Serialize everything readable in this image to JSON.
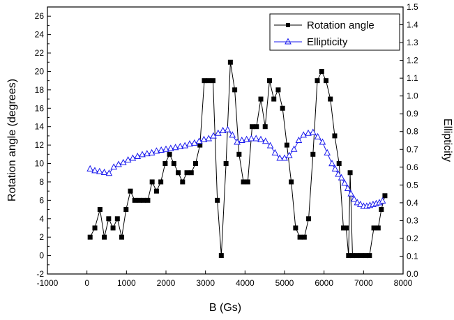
{
  "chart_data": {
    "type": "line",
    "xlabel": "B (Gs)",
    "ylabel_left": "Rotation angle (degrees)",
    "ylabel_right": "Ellipticity",
    "xlim": [
      -1000,
      8000
    ],
    "ylim_left": [
      -2,
      27
    ],
    "ylim_right": [
      0.0,
      1.5
    ],
    "x_ticks": [
      -1000,
      0,
      1000,
      2000,
      3000,
      4000,
      5000,
      6000,
      7000,
      8000
    ],
    "y_left_ticks": [
      -2,
      0,
      2,
      4,
      6,
      8,
      10,
      12,
      14,
      16,
      18,
      20,
      22,
      24,
      26
    ],
    "y_right_ticks": [
      0.0,
      0.1,
      0.2,
      0.3,
      0.4,
      0.5,
      0.6,
      0.7,
      0.8,
      0.9,
      1.0,
      1.1,
      1.2,
      1.3,
      1.4,
      1.5
    ],
    "grid": false,
    "legend_position": "top-right",
    "series": [
      {
        "name": "Rotation angle",
        "axis": "left",
        "marker": "square",
        "color": "#000000",
        "x": [
          80,
          200,
          330,
          440,
          550,
          660,
          770,
          880,
          990,
          1100,
          1210,
          1320,
          1430,
          1540,
          1650,
          1760,
          1870,
          1980,
          2090,
          2200,
          2310,
          2420,
          2530,
          2640,
          2750,
          2860,
          2970,
          3080,
          3190,
          3300,
          3400,
          3520,
          3630,
          3740,
          3850,
          3960,
          4070,
          4180,
          4290,
          4400,
          4510,
          4620,
          4730,
          4840,
          4950,
          5060,
          5170,
          5280,
          5390,
          5500,
          5610,
          5720,
          5830,
          5940,
          6050,
          6160,
          6270,
          6380,
          6490,
          6560,
          6620,
          6660,
          6720,
          6830,
          6940,
          7050,
          7150,
          7260,
          7370,
          7450,
          7540
        ],
        "y": [
          2,
          3,
          5,
          2,
          4,
          3,
          4,
          2,
          5,
          7,
          6,
          6,
          6,
          6,
          8,
          7,
          8,
          10,
          11,
          10,
          9,
          8,
          9,
          9,
          10,
          12,
          19,
          19,
          19,
          6,
          0,
          10,
          21,
          18,
          11,
          8,
          8,
          14,
          14,
          17,
          14,
          19,
          17,
          18,
          16,
          12,
          8,
          3,
          2,
          2,
          4,
          11,
          19,
          20,
          19,
          17,
          13,
          10,
          3,
          3,
          0,
          9,
          0,
          0,
          0,
          0,
          0,
          3,
          3,
          5,
          6.5
        ]
      },
      {
        "name": "Ellipticity",
        "axis": "right",
        "marker": "triangle-open",
        "color": "#1a1aee",
        "x": [
          80,
          200,
          320,
          440,
          560,
          680,
          800,
          920,
          1040,
          1160,
          1280,
          1400,
          1520,
          1640,
          1760,
          1880,
          2000,
          2120,
          2240,
          2360,
          2480,
          2600,
          2720,
          2840,
          2960,
          3080,
          3200,
          3320,
          3440,
          3560,
          3680,
          3800,
          3920,
          4040,
          4160,
          4280,
          4400,
          4520,
          4640,
          4760,
          4880,
          5000,
          5120,
          5240,
          5360,
          5480,
          5600,
          5720,
          5840,
          5960,
          6080,
          6200,
          6280,
          6360,
          6440,
          6520,
          6600,
          6680,
          6760,
          6840,
          6920,
          7000,
          7080,
          7160,
          7240,
          7320,
          7400,
          7480
        ],
        "y": [
          0.59,
          0.58,
          0.575,
          0.57,
          0.565,
          0.6,
          0.615,
          0.625,
          0.64,
          0.65,
          0.66,
          0.67,
          0.675,
          0.68,
          0.69,
          0.695,
          0.7,
          0.705,
          0.71,
          0.715,
          0.72,
          0.73,
          0.735,
          0.745,
          0.755,
          0.76,
          0.775,
          0.79,
          0.805,
          0.81,
          0.78,
          0.74,
          0.75,
          0.755,
          0.76,
          0.76,
          0.755,
          0.745,
          0.72,
          0.68,
          0.65,
          0.65,
          0.665,
          0.7,
          0.75,
          0.78,
          0.79,
          0.795,
          0.77,
          0.74,
          0.68,
          0.62,
          0.59,
          0.56,
          0.54,
          0.51,
          0.48,
          0.45,
          0.42,
          0.4,
          0.39,
          0.38,
          0.38,
          0.385,
          0.39,
          0.395,
          0.4,
          0.41
        ]
      }
    ]
  }
}
